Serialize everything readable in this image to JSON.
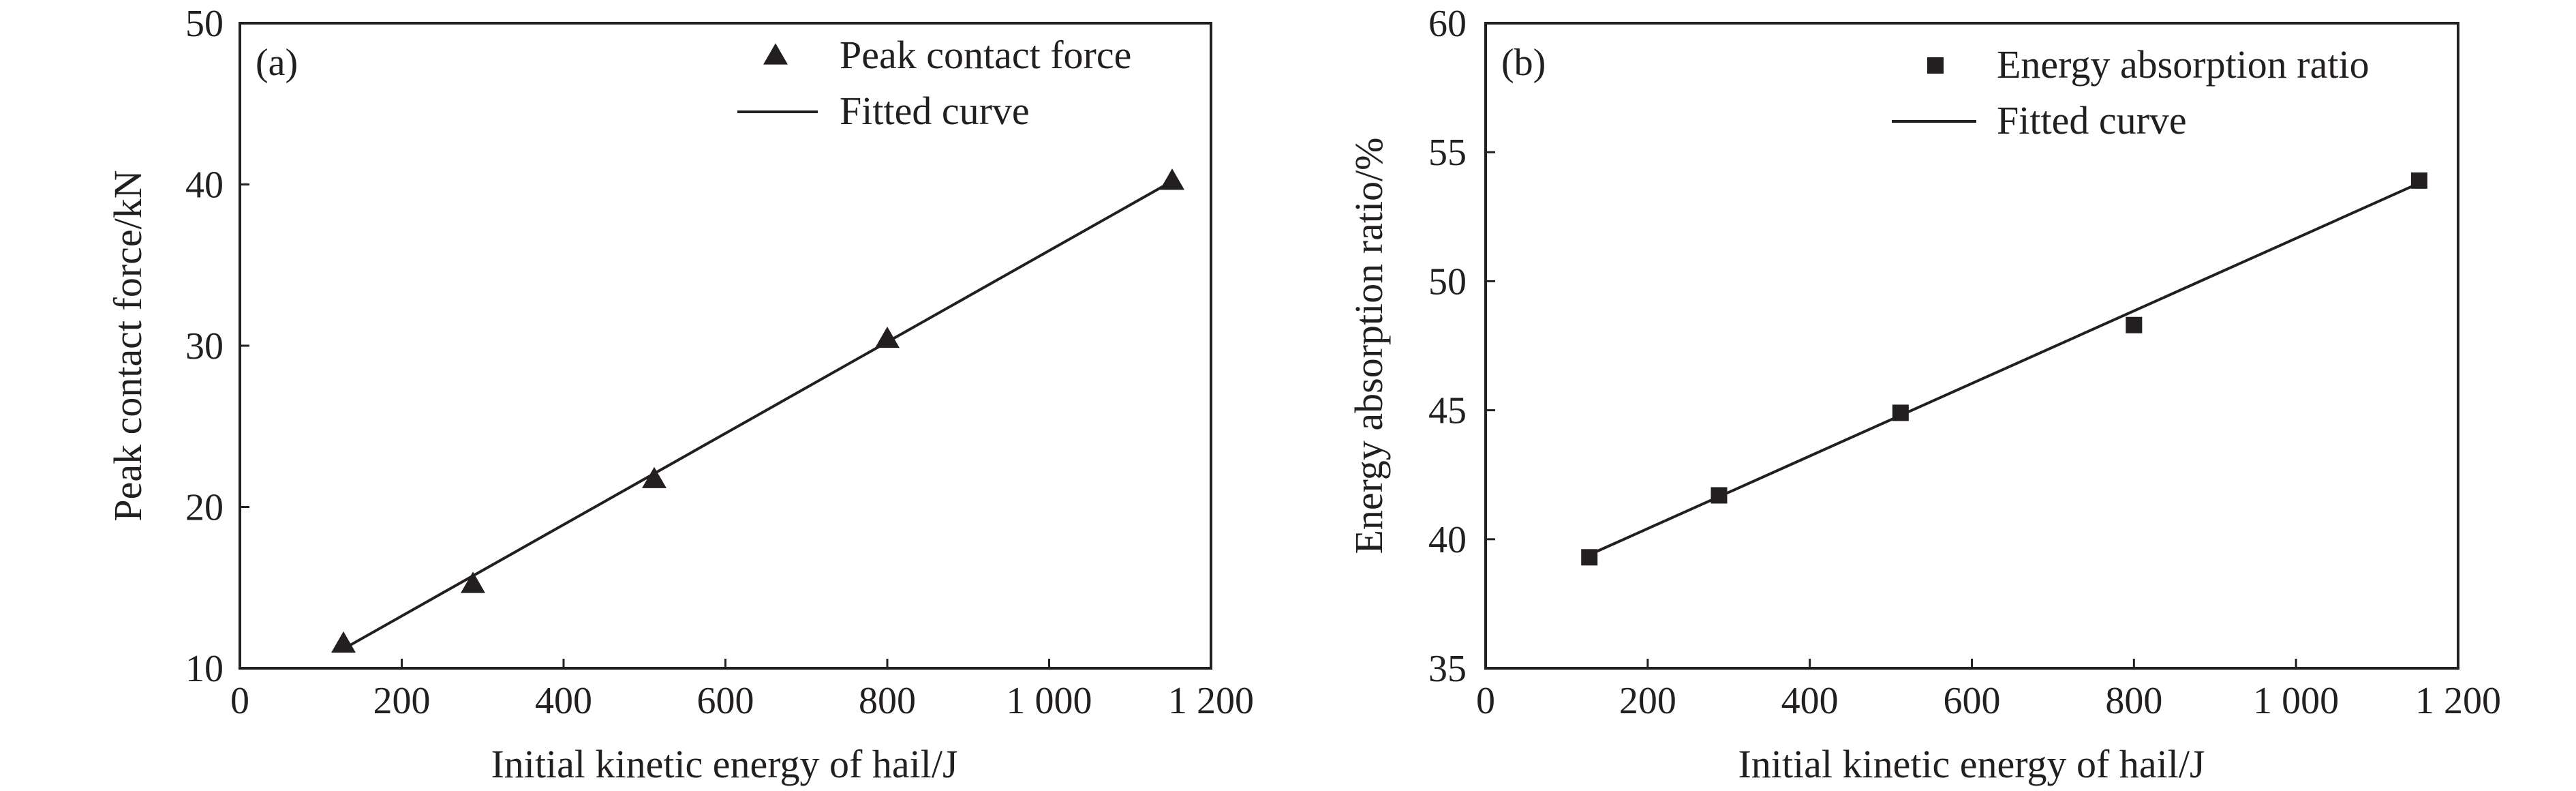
{
  "colors": {
    "ink": "#231f20",
    "background": "#ffffff"
  },
  "chart_data": [
    {
      "type": "scatter",
      "panel_label": "(a)",
      "xlabel": "Initial kinetic energy of hail/J",
      "ylabel": "Peak contact force/kN",
      "xlim": [
        0,
        1200
      ],
      "ylim": [
        10,
        50
      ],
      "xticks": [
        0,
        200,
        400,
        600,
        800,
        1000,
        1200
      ],
      "xtick_labels": [
        "0",
        "200",
        "400",
        "600",
        "800",
        "1 000",
        "1 200"
      ],
      "yticks": [
        10,
        20,
        30,
        40,
        50
      ],
      "ytick_labels": [
        "10",
        "20",
        "30",
        "40",
        "50"
      ],
      "grid": false,
      "legend_position": "top-right",
      "series": [
        {
          "name": "Peak contact force",
          "marker": "triangle",
          "x": [
            128,
            288,
            512,
            800,
            1152
          ],
          "y": [
            11.5,
            15.2,
            21.7,
            30.4,
            40.2
          ]
        },
        {
          "name": "Fitted curve",
          "style": "line",
          "x": [
            128,
            1152
          ],
          "y": [
            11.2,
            40.2
          ]
        }
      ]
    },
    {
      "type": "scatter",
      "panel_label": "(b)",
      "xlabel": "Initial kinetic energy of hail/J",
      "ylabel": "Energy absorption ratio/%",
      "xlim": [
        0,
        1200
      ],
      "ylim": [
        35,
        60
      ],
      "xticks": [
        0,
        200,
        400,
        600,
        800,
        1000,
        1200
      ],
      "xtick_labels": [
        "0",
        "200",
        "400",
        "600",
        "800",
        "1 000",
        "1 200"
      ],
      "yticks": [
        35,
        40,
        45,
        50,
        55,
        60
      ],
      "ytick_labels": [
        "35",
        "40",
        "45",
        "50",
        "55",
        "60"
      ],
      "grid": false,
      "legend_position": "top-right",
      "series": [
        {
          "name": "Energy absorption ratio",
          "marker": "square",
          "x": [
            128,
            288,
            512,
            800,
            1152
          ],
          "y": [
            39.3,
            41.7,
            44.9,
            48.3,
            53.9
          ]
        },
        {
          "name": "Fitted curve",
          "style": "line",
          "x": [
            128,
            1152
          ],
          "y": [
            39.4,
            53.8
          ]
        }
      ]
    }
  ]
}
